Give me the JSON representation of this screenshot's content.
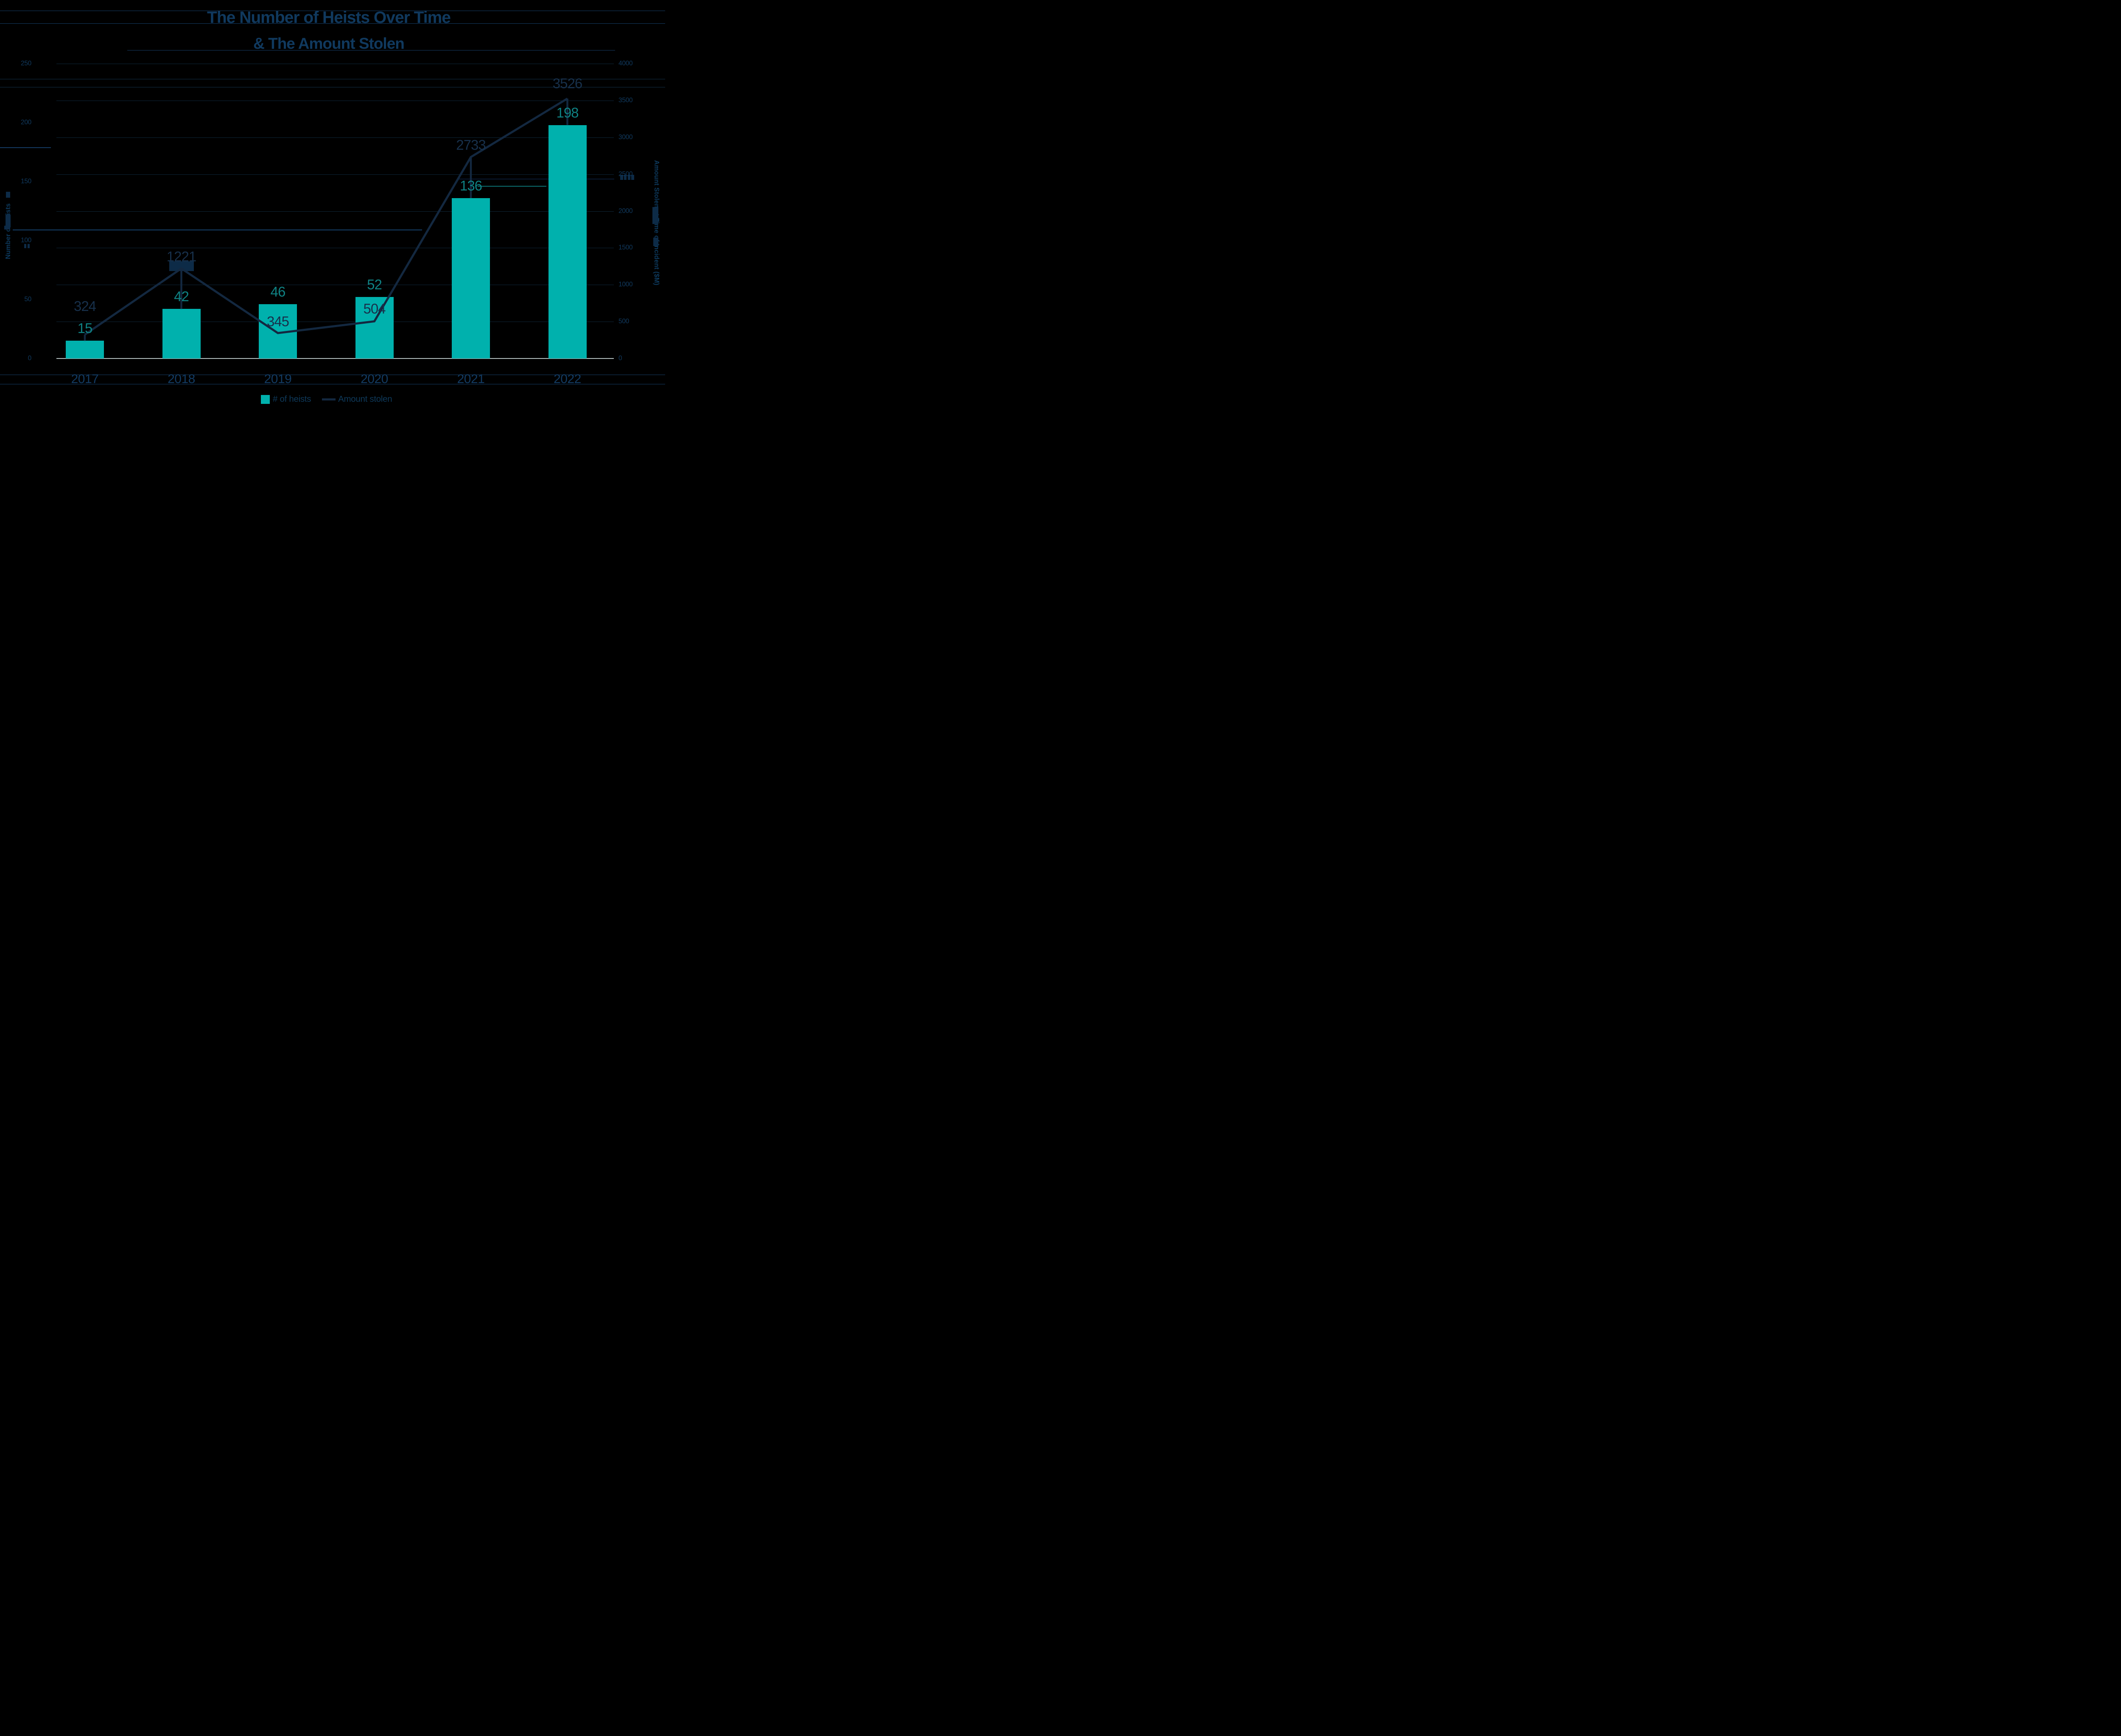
{
  "title": {
    "line1": "The Number of Heists Over Time",
    "line2": "& The Amount Stolen"
  },
  "chart_data": {
    "type": "bar",
    "subtype": "combo bar+line, dual axis",
    "categories": [
      "2017",
      "2018",
      "2019",
      "2020",
      "2021",
      "2022"
    ],
    "series": [
      {
        "name": "# of heists",
        "type": "bar",
        "axis": "left",
        "values": [
          15,
          42,
          46,
          52,
          136,
          198
        ],
        "color": "#00b1ad",
        "label_color": "#0f8183"
      },
      {
        "name": "Amount stolen",
        "type": "line",
        "axis": "right",
        "values": [
          324,
          1221,
          345,
          504,
          2733,
          3526
        ],
        "color": "#132840",
        "label_color": "#17304b"
      }
    ],
    "left_axis": {
      "title": "Number of Heists",
      "min": 0,
      "max": 250,
      "ticks": [
        0,
        50,
        100,
        150,
        200,
        250
      ]
    },
    "right_axis": {
      "title": "Amount Stolen at Time of Incident ($M)",
      "min": 0,
      "max": 4000,
      "ticks": [
        0,
        500,
        1000,
        1500,
        2000,
        2500,
        3000,
        3500,
        4000
      ]
    },
    "legend": [
      {
        "label": "# of heists",
        "swatch": "square",
        "color": "#00b1ad"
      },
      {
        "label": "Amount stolen",
        "swatch": "line",
        "color": "#132840"
      }
    ],
    "legend_position": "bottom-center",
    "grid": "faint horizontal gridlines on black background"
  },
  "colors": {
    "background": "#000000",
    "title": "#10395e",
    "bar": "#00b1ad",
    "bar_label": "#0f8183",
    "line": "#132840",
    "line_label": "#17304b",
    "tick_label": "#10395e",
    "year_label": "#123a61",
    "legend_text": "#0e395a",
    "gridline": "#123249",
    "baseline": "#c6d4d4"
  }
}
